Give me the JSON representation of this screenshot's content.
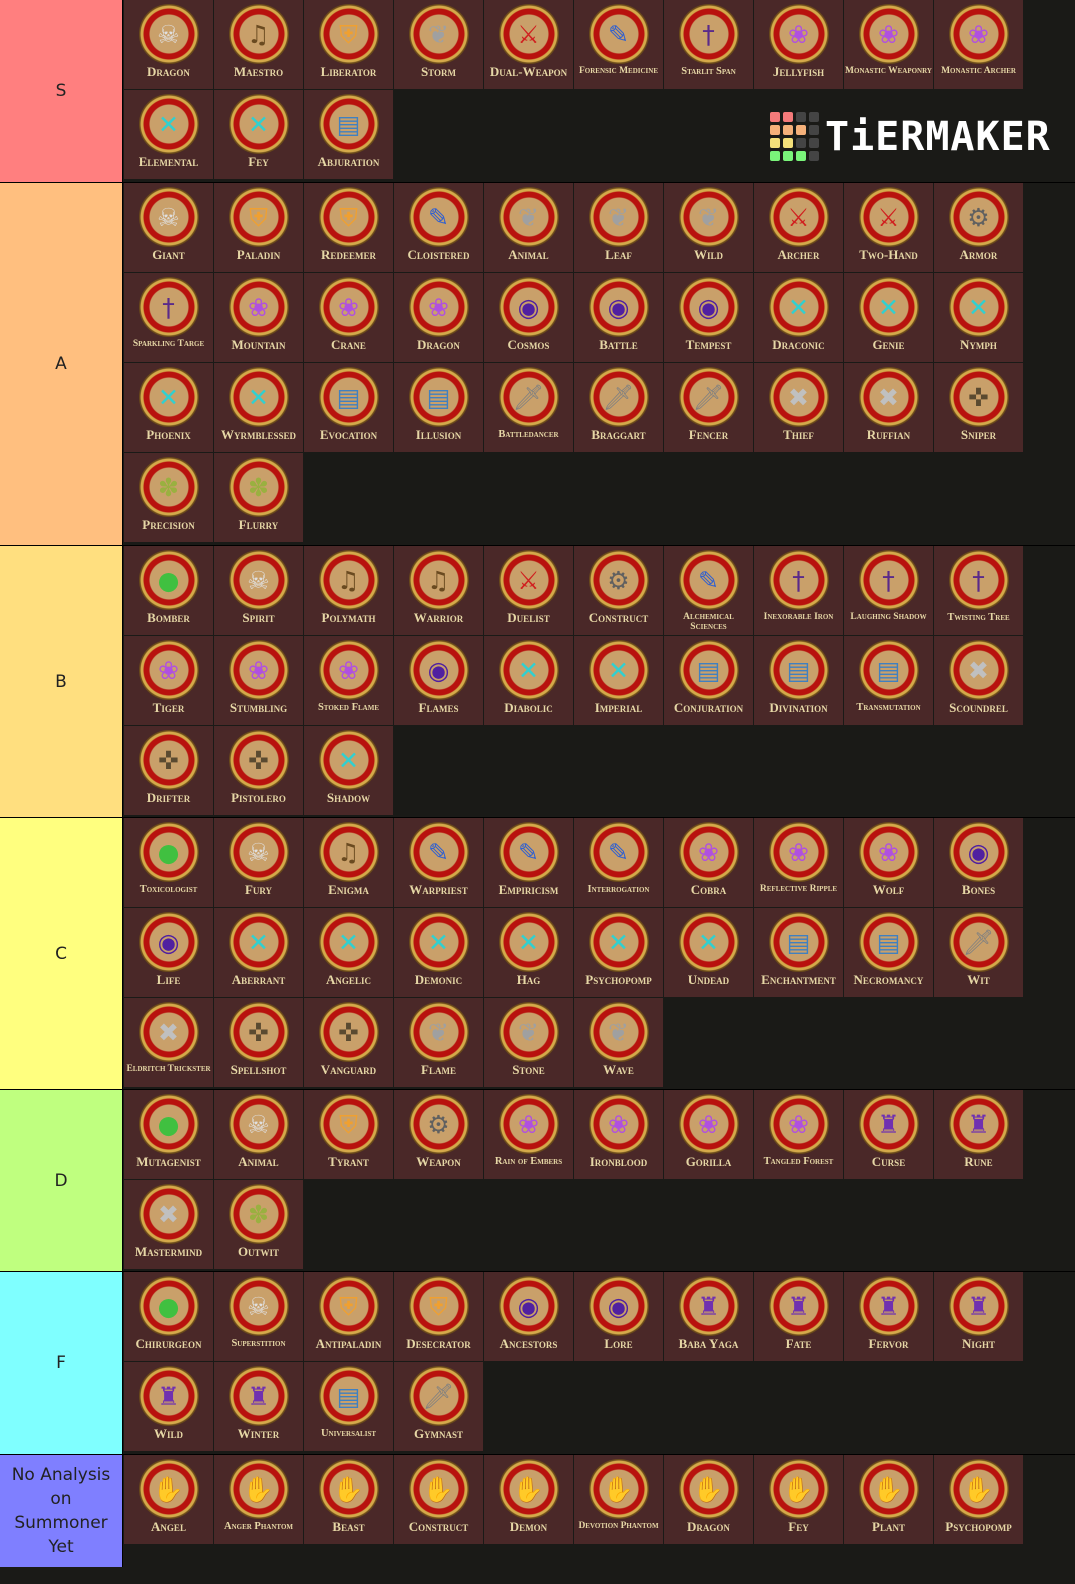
{
  "logo": {
    "text": "TiERMAKER"
  },
  "tiers": [
    {
      "label": "S",
      "color": "#ff7f7f",
      "items": [
        [
          "Dragon",
          "barbarian"
        ],
        [
          "Maestro",
          "bard"
        ],
        [
          "Liberator",
          "champion"
        ],
        [
          "Storm",
          "druid"
        ],
        [
          "Dual-Weapon",
          "fighter"
        ],
        [
          "Forensic Medicine",
          "investigator"
        ],
        [
          "Starlit Span",
          "magus"
        ],
        [
          "Jellyfish",
          "monk"
        ],
        [
          "Monastic Weaponry",
          "monk"
        ],
        [
          "Monastic Archer",
          "monk"
        ],
        [
          "Elemental",
          "sorcerer"
        ],
        [
          "Fey",
          "sorcerer"
        ],
        [
          "Abjuration",
          "wizard"
        ]
      ]
    },
    {
      "label": "A",
      "color": "#ffbf7f",
      "items": [
        [
          "Giant",
          "barbarian"
        ],
        [
          "Paladin",
          "champion"
        ],
        [
          "Redeemer",
          "champion"
        ],
        [
          "Cloistered",
          "investigator"
        ],
        [
          "Animal",
          "druid"
        ],
        [
          "Leaf",
          "druid"
        ],
        [
          "Wild",
          "druid"
        ],
        [
          "Archer",
          "fighter"
        ],
        [
          "Two-Hand",
          "fighter"
        ],
        [
          "Armor",
          "inventor"
        ],
        [
          "Sparkling Targe",
          "magus"
        ],
        [
          "Mountain",
          "monk"
        ],
        [
          "Crane",
          "monk"
        ],
        [
          "Dragon",
          "monk"
        ],
        [
          "Cosmos",
          "oracle"
        ],
        [
          "Battle",
          "oracle"
        ],
        [
          "Tempest",
          "oracle"
        ],
        [
          "Draconic",
          "sorcerer"
        ],
        [
          "Genie",
          "sorcerer"
        ],
        [
          "Nymph",
          "sorcerer"
        ],
        [
          "Phoenix",
          "sorcerer"
        ],
        [
          "Wyrmblessed",
          "sorcerer"
        ],
        [
          "Evocation",
          "wizard"
        ],
        [
          "Illusion",
          "wizard"
        ],
        [
          "Battledancer",
          "swashbuckler"
        ],
        [
          "Braggart",
          "swashbuckler"
        ],
        [
          "Fencer",
          "swashbuckler"
        ],
        [
          "Thief",
          "rogue"
        ],
        [
          "Ruffian",
          "rogue"
        ],
        [
          "Sniper",
          "gunslinger"
        ],
        [
          "Precision",
          "ranger"
        ],
        [
          "Flurry",
          "ranger"
        ]
      ]
    },
    {
      "label": "B",
      "color": "#ffdf7f",
      "items": [
        [
          "Bomber",
          "alchemist"
        ],
        [
          "Spirit",
          "barbarian"
        ],
        [
          "Polymath",
          "bard"
        ],
        [
          "Warrior",
          "bard"
        ],
        [
          "Duelist",
          "fighter"
        ],
        [
          "Construct",
          "inventor"
        ],
        [
          "Alchemical Sciences",
          "investigator"
        ],
        [
          "Inexorable Iron",
          "magus"
        ],
        [
          "Laughing Shadow",
          "magus"
        ],
        [
          "Twisting Tree",
          "magus"
        ],
        [
          "Tiger",
          "monk"
        ],
        [
          "Stumbling",
          "monk"
        ],
        [
          "Stoked Flame",
          "monk"
        ],
        [
          "Flames",
          "oracle"
        ],
        [
          "Diabolic",
          "sorcerer"
        ],
        [
          "Imperial",
          "sorcerer"
        ],
        [
          "Conjuration",
          "wizard"
        ],
        [
          "Divination",
          "wizard"
        ],
        [
          "Transmutation",
          "wizard"
        ],
        [
          "Scoundrel",
          "rogue"
        ],
        [
          "Drifter",
          "gunslinger"
        ],
        [
          "Pistolero",
          "gunslinger"
        ],
        [
          "Shadow",
          "sorcerer"
        ]
      ]
    },
    {
      "label": "C",
      "color": "#ffff7f",
      "items": [
        [
          "Toxicologist",
          "alchemist"
        ],
        [
          "Fury",
          "barbarian"
        ],
        [
          "Enigma",
          "bard"
        ],
        [
          "Warpriest",
          "investigator"
        ],
        [
          "Empiricism",
          "investigator"
        ],
        [
          "Interrogation",
          "investigator"
        ],
        [
          "Cobra",
          "monk"
        ],
        [
          "Reflective Ripple",
          "monk"
        ],
        [
          "Wolf",
          "monk"
        ],
        [
          "Bones",
          "oracle"
        ],
        [
          "Life",
          "oracle"
        ],
        [
          "Aberrant",
          "sorcerer"
        ],
        [
          "Angelic",
          "sorcerer"
        ],
        [
          "Demonic",
          "sorcerer"
        ],
        [
          "Hag",
          "sorcerer"
        ],
        [
          "Psychopomp",
          "sorcerer"
        ],
        [
          "Undead",
          "sorcerer"
        ],
        [
          "Enchantment",
          "wizard"
        ],
        [
          "Necromancy",
          "wizard"
        ],
        [
          "Wit",
          "swashbuckler"
        ],
        [
          "Eldritch Trickster",
          "rogue"
        ],
        [
          "Spellshot",
          "gunslinger"
        ],
        [
          "Vanguard",
          "gunslinger"
        ],
        [
          "Flame",
          "druid"
        ],
        [
          "Stone",
          "druid"
        ],
        [
          "Wave",
          "druid"
        ]
      ]
    },
    {
      "label": "D",
      "color": "#bfff7f",
      "items": [
        [
          "Mutagenist",
          "alchemist"
        ],
        [
          "Animal",
          "barbarian"
        ],
        [
          "Tyrant",
          "champion"
        ],
        [
          "Weapon",
          "inventor"
        ],
        [
          "Rain of Embers",
          "monk"
        ],
        [
          "Ironblood",
          "monk"
        ],
        [
          "Gorilla",
          "monk"
        ],
        [
          "Tangled Forest",
          "monk"
        ],
        [
          "Curse",
          "witch"
        ],
        [
          "Rune",
          "witch"
        ],
        [
          "Mastermind",
          "rogue"
        ],
        [
          "Outwit",
          "ranger"
        ]
      ]
    },
    {
      "label": "F",
      "color": "#7fffff",
      "items": [
        [
          "Chirurgeon",
          "alchemist"
        ],
        [
          "Superstition",
          "barbarian"
        ],
        [
          "Antipaladin",
          "champion"
        ],
        [
          "Desecrator",
          "champion"
        ],
        [
          "Ancestors",
          "oracle"
        ],
        [
          "Lore",
          "oracle"
        ],
        [
          "Baba Yaga",
          "witch"
        ],
        [
          "Fate",
          "witch"
        ],
        [
          "Fervor",
          "witch"
        ],
        [
          "Night",
          "witch"
        ],
        [
          "Wild",
          "witch"
        ],
        [
          "Winter",
          "witch"
        ],
        [
          "Universalist",
          "wizard"
        ],
        [
          "Gymnast",
          "swashbuckler"
        ]
      ]
    },
    {
      "label": "No Analysis on Summoner Yet",
      "color": "#7f7fff",
      "items": [
        [
          "Angel",
          "summoner"
        ],
        [
          "Anger Phantom",
          "summoner"
        ],
        [
          "Beast",
          "summoner"
        ],
        [
          "Construct",
          "summoner"
        ],
        [
          "Demon",
          "summoner"
        ],
        [
          "Devotion Phantom",
          "summoner"
        ],
        [
          "Dragon",
          "summoner"
        ],
        [
          "Fey",
          "summoner"
        ],
        [
          "Plant",
          "summoner"
        ],
        [
          "Psychopomp",
          "summoner"
        ]
      ]
    }
  ],
  "icons": {
    "barbarian": {
      "glyph": "☠",
      "color": "#e0e0e0"
    },
    "bard": {
      "glyph": "♫",
      "color": "#6a4a20"
    },
    "champion": {
      "glyph": "⛨",
      "color": "#f0a030"
    },
    "druid": {
      "glyph": "❦",
      "color": "#a0a0a0"
    },
    "fighter": {
      "glyph": "⚔",
      "color": "#d02020"
    },
    "investigator": {
      "glyph": "✎",
      "color": "#3060d0"
    },
    "magus": {
      "glyph": "†",
      "color": "#5a2a8a"
    },
    "monk": {
      "glyph": "❀",
      "color": "#b050e0"
    },
    "oracle": {
      "glyph": "◉",
      "color": "#5020a0"
    },
    "sorcerer": {
      "glyph": "✕",
      "color": "#30d0d0"
    },
    "wizard": {
      "glyph": "▤",
      "color": "#4080c0"
    },
    "swashbuckler": {
      "glyph": "🗡",
      "color": "#808080"
    },
    "rogue": {
      "glyph": "✖",
      "color": "#c0c0c0"
    },
    "gunslinger": {
      "glyph": "✜",
      "color": "#5a4a30"
    },
    "ranger": {
      "glyph": "✽",
      "color": "#9ab040"
    },
    "alchemist": {
      "glyph": "●",
      "color": "#40c040"
    },
    "inventor": {
      "glyph": "⚙",
      "color": "#606060"
    },
    "witch": {
      "glyph": "♜",
      "color": "#7030b0"
    },
    "summoner": {
      "glyph": "✋",
      "color": "#4030c0"
    }
  }
}
